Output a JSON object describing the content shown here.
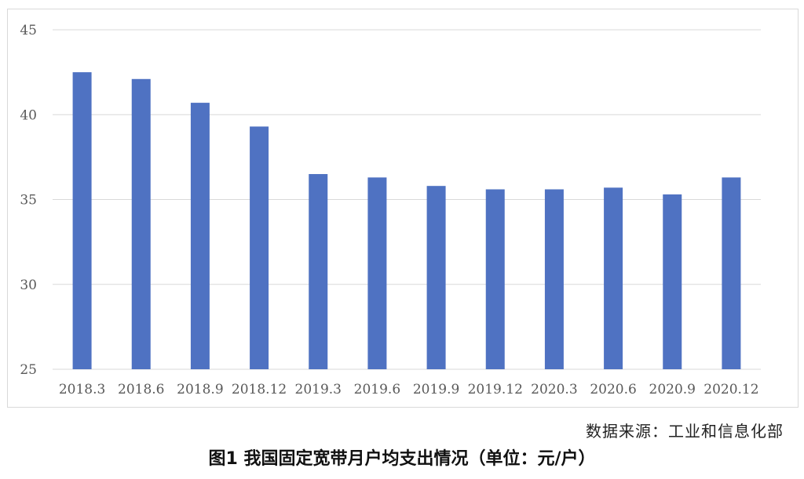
{
  "chart_data": {
    "type": "bar",
    "categories": [
      "2018.3",
      "2018.6",
      "2018.9",
      "2018.12",
      "2019.3",
      "2019.6",
      "2019.9",
      "2019.12",
      "2020.3",
      "2020.6",
      "2020.9",
      "2020.12"
    ],
    "values": [
      42.5,
      42.1,
      40.7,
      39.3,
      36.5,
      36.3,
      35.8,
      35.6,
      35.6,
      35.7,
      35.3,
      36.3
    ],
    "ylim": [
      25,
      45
    ],
    "yticks": [
      "25",
      "30",
      "35",
      "40",
      "45"
    ],
    "grid": true,
    "bar_color": "#4f72c2",
    "grid_color": "#d9d9d9"
  },
  "source_text": "数据来源：工业和信息化部",
  "caption_text": "图1 我国固定宽带月户均支出情况（单位：元/户）"
}
